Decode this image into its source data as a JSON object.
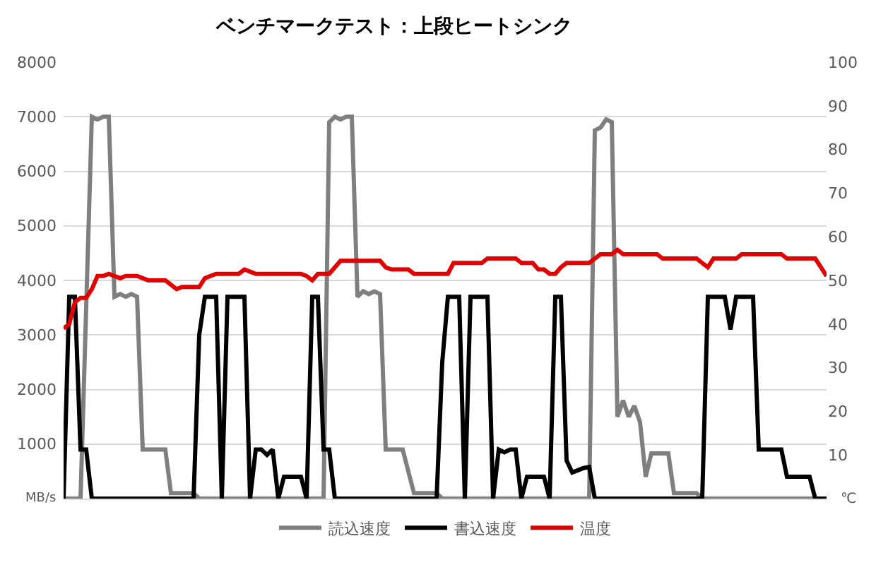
{
  "chart_data": {
    "type": "line",
    "title": "ベンチマークテスト：上段ヒートシンク",
    "ylabel": "MB/s",
    "y2label": "℃",
    "categories": [
      null,
      null,
      null,
      null,
      null,
      null,
      null,
      null,
      null,
      null,
      null,
      null,
      null,
      null,
      null,
      null,
      null,
      null,
      null,
      null,
      null,
      null,
      null,
      null,
      null,
      null,
      null,
      null,
      null,
      null,
      null,
      null,
      null,
      null,
      null,
      null,
      null,
      null,
      null,
      null,
      null,
      null,
      null,
      null,
      null,
      null,
      null,
      null,
      null,
      null,
      null,
      null,
      null,
      null,
      null,
      null,
      null,
      null,
      null,
      null,
      null,
      null,
      null,
      null,
      null,
      null,
      null,
      null,
      null,
      null,
      null,
      null,
      null,
      null,
      null,
      null,
      null,
      null,
      null,
      null,
      null,
      null,
      null,
      null,
      null,
      null,
      null,
      null,
      null,
      null,
      null,
      null,
      null,
      null,
      null,
      null,
      null,
      null,
      null,
      null,
      null,
      null,
      null,
      null,
      null,
      null,
      null,
      null,
      null,
      null,
      null,
      null,
      null,
      null,
      null,
      null,
      null,
      null,
      null,
      null,
      null,
      null,
      null,
      null,
      null,
      null,
      null,
      null,
      null,
      null,
      null,
      null,
      null,
      null,
      null,
      null
    ],
    "series": [
      {
        "name": "読込速度",
        "color": "#7f7f7f",
        "values": [
          0,
          0,
          0,
          0,
          3500,
          7000,
          6950,
          7000,
          7000,
          3700,
          3750,
          3700,
          3750,
          3700,
          900,
          900,
          900,
          900,
          900,
          100,
          100,
          100,
          100,
          100,
          0,
          0,
          0,
          0,
          0,
          0,
          0,
          0,
          0,
          0,
          0,
          0,
          0,
          0,
          0,
          0,
          0,
          0,
          0,
          0,
          0,
          0,
          0,
          6900,
          7000,
          6950,
          7000,
          7000,
          3700,
          3800,
          3750,
          3800,
          3750,
          900,
          900,
          900,
          900,
          500,
          100,
          100,
          100,
          100,
          100,
          0,
          0,
          0,
          0,
          0,
          0,
          0,
          0,
          0,
          0,
          0,
          0,
          0,
          0,
          0,
          0,
          0,
          0,
          0,
          0,
          0,
          0,
          0,
          0,
          0,
          0,
          0,
          6750,
          6800,
          6950,
          6900,
          1500,
          1800,
          1500,
          1700,
          1400,
          400,
          830,
          830,
          830,
          830,
          100,
          100,
          100,
          100,
          100,
          0,
          0,
          0,
          0,
          0,
          0,
          0,
          0,
          0,
          0,
          0,
          0,
          0,
          0,
          0,
          0,
          0,
          0,
          0,
          0,
          0,
          0,
          0
        ]
      },
      {
        "name": "書込速度",
        "color": "#000000",
        "values": [
          0,
          3700,
          3700,
          900,
          900,
          0,
          0,
          0,
          0,
          0,
          0,
          0,
          0,
          0,
          0,
          0,
          0,
          0,
          0,
          0,
          0,
          0,
          0,
          0,
          3000,
          3700,
          3700,
          3700,
          0,
          3700,
          3700,
          3700,
          3700,
          0,
          900,
          900,
          800,
          900,
          0,
          400,
          400,
          400,
          400,
          0,
          3700,
          3700,
          900,
          900,
          0,
          0,
          0,
          0,
          0,
          0,
          0,
          0,
          0,
          0,
          0,
          0,
          0,
          0,
          0,
          0,
          0,
          0,
          0,
          2500,
          3700,
          3700,
          3700,
          0,
          3700,
          3700,
          3700,
          3700,
          0,
          900,
          850,
          900,
          900,
          0,
          400,
          400,
          400,
          400,
          0,
          3700,
          3700,
          700,
          480,
          520,
          560,
          580,
          0,
          0,
          0,
          0,
          0,
          0,
          0,
          0,
          0,
          0,
          0,
          0,
          0,
          0,
          0,
          0,
          0,
          0,
          0,
          0,
          3700,
          3700,
          3700,
          3700,
          3100,
          3700,
          3700,
          3700,
          3700,
          900,
          900,
          900,
          900,
          900,
          400,
          400,
          400,
          400,
          400,
          0,
          0,
          0
        ]
      },
      {
        "name": "温度",
        "color": "#e00000",
        "axis": "y2",
        "values": [
          39,
          40,
          45,
          46,
          46,
          48,
          51,
          51,
          51.5,
          51,
          50.5,
          51,
          51,
          51,
          50.5,
          50,
          50,
          50,
          50,
          49,
          48,
          48.5,
          48.5,
          48.5,
          48.5,
          50.5,
          51,
          51.5,
          51.5,
          51.5,
          51.5,
          51.5,
          52.5,
          52,
          51.5,
          51.5,
          51.5,
          51.5,
          51.5,
          51.5,
          51.5,
          51.5,
          51.5,
          51,
          50,
          51.5,
          51.5,
          51.5,
          53,
          54.5,
          54.5,
          54.5,
          54.5,
          54.5,
          54.5,
          54.5,
          54.5,
          53,
          52.5,
          52.5,
          52.5,
          52.5,
          51.5,
          51.5,
          51.5,
          51.5,
          51.5,
          51.5,
          51.5,
          54,
          54,
          54,
          54,
          54,
          54,
          55,
          55,
          55,
          55,
          55,
          55,
          54,
          54,
          54,
          52.5,
          52.5,
          51.5,
          51.5,
          53,
          54,
          54,
          54,
          54,
          54,
          55,
          56,
          56,
          56,
          57,
          56,
          56,
          56,
          56,
          56,
          56,
          56,
          55,
          55,
          55,
          55,
          55,
          55,
          55,
          54,
          53,
          55,
          55,
          55,
          55,
          55,
          56,
          56,
          56,
          56,
          56,
          56,
          56,
          56,
          55,
          55,
          55,
          55,
          55,
          55,
          53,
          51
        ]
      }
    ],
    "ylim": [
      0,
      8000
    ],
    "yticks": [
      {
        "value": 0,
        "label": null
      },
      1000,
      2000,
      3000,
      4000,
      5000,
      6000,
      7000,
      8000
    ],
    "y2lim": [
      0,
      100
    ],
    "y2ticks": [
      10,
      20,
      30,
      40,
      50,
      60,
      70,
      80,
      90,
      100
    ],
    "grid": "y",
    "legend": "bottom",
    "tick_labels": "y",
    "marker": "none",
    "line_style": "solid"
  }
}
